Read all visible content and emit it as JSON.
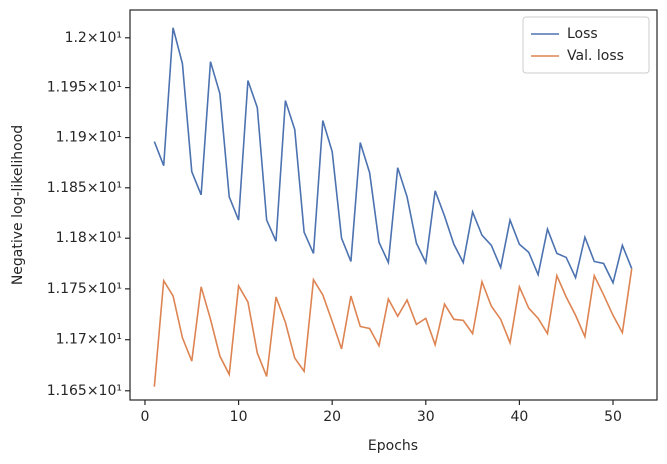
{
  "chart_data": {
    "type": "line",
    "x_label": "Epochs",
    "y_label": "Negative log-likelihood",
    "x": [
      1,
      2,
      3,
      4,
      5,
      6,
      7,
      8,
      9,
      10,
      11,
      12,
      13,
      14,
      15,
      16,
      17,
      18,
      19,
      20,
      21,
      22,
      23,
      24,
      25,
      26,
      27,
      28,
      29,
      30,
      31,
      32,
      33,
      34,
      35,
      36,
      37,
      38,
      39,
      40,
      41,
      42,
      43,
      44,
      45,
      46,
      47,
      48,
      49,
      50,
      51,
      52
    ],
    "series": [
      {
        "name": "Loss",
        "color": "#4c72b0",
        "values": [
          11.896,
          11.872,
          12.01,
          11.974,
          11.866,
          11.843,
          11.976,
          11.944,
          11.841,
          11.818,
          11.957,
          11.93,
          11.818,
          11.797,
          11.937,
          11.908,
          11.806,
          11.785,
          11.917,
          11.886,
          11.8,
          11.777,
          11.895,
          11.865,
          11.796,
          11.776,
          11.87,
          11.841,
          11.795,
          11.776,
          11.847,
          11.822,
          11.794,
          11.776,
          11.826,
          11.803,
          11.793,
          11.771,
          11.818,
          11.794,
          11.786,
          11.764,
          11.809,
          11.785,
          11.781,
          11.761,
          11.801,
          11.777,
          11.775,
          11.756,
          11.793,
          11.77
        ]
      },
      {
        "name": "Val. loss",
        "color": "#dd8452",
        "values": [
          11.654,
          11.758,
          11.743,
          11.702,
          11.679,
          11.752,
          11.72,
          11.684,
          11.666,
          11.753,
          11.737,
          11.687,
          11.664,
          11.742,
          11.717,
          11.682,
          11.669,
          11.759,
          11.744,
          11.718,
          11.691,
          11.743,
          11.713,
          11.711,
          11.694,
          11.74,
          11.723,
          11.739,
          11.715,
          11.721,
          11.695,
          11.735,
          11.72,
          11.719,
          11.706,
          11.757,
          11.733,
          11.72,
          11.697,
          11.752,
          11.731,
          11.721,
          11.706,
          11.763,
          11.742,
          11.724,
          11.703,
          11.763,
          11.744,
          11.724,
          11.707,
          11.77
        ]
      }
    ],
    "xlim": [
      -1.6,
      54.7
    ],
    "xticks": [
      0,
      10,
      20,
      30,
      40,
      50
    ],
    "ylim": [
      11.641,
      12.028
    ],
    "y_scale": "log",
    "yticks": [
      {
        "value": 11.65,
        "label": "1.165×10¹"
      },
      {
        "value": 11.7,
        "label": "1.17×10¹"
      },
      {
        "value": 11.75,
        "label": "1.175×10¹"
      },
      {
        "value": 11.8,
        "label": "1.18×10¹"
      },
      {
        "value": 11.85,
        "label": "1.185×10¹"
      },
      {
        "value": 11.9,
        "label": "1.19×10¹"
      },
      {
        "value": 11.95,
        "label": "1.195×10¹"
      },
      {
        "value": 12.0,
        "label": "1.2×10¹"
      }
    ],
    "grid": false,
    "legend": "upper right"
  }
}
